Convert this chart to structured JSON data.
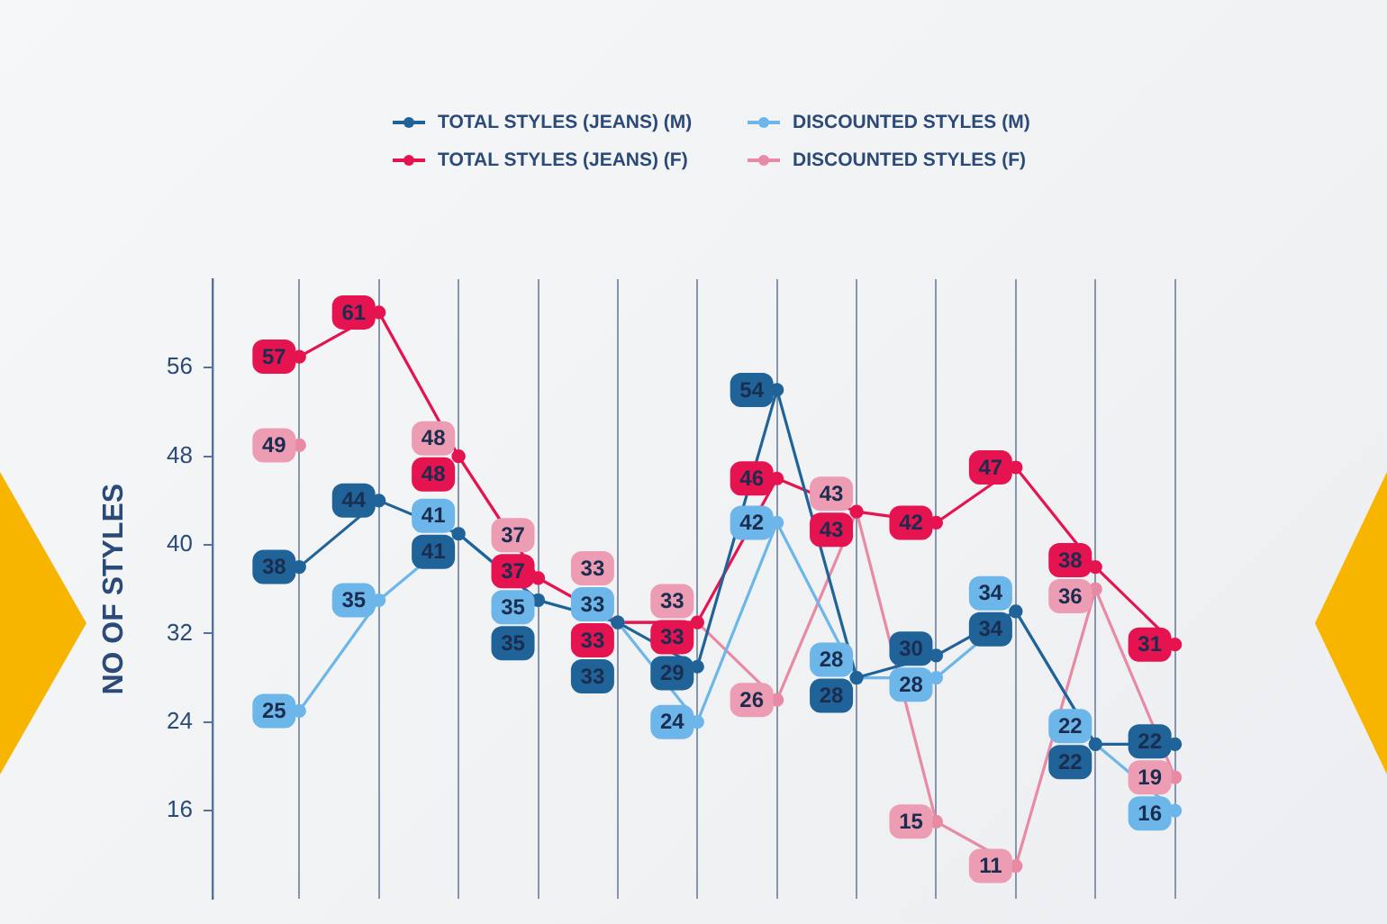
{
  "chart_data": {
    "type": "line",
    "ylabel": "NO OF STYLES",
    "categories": [
      null,
      null,
      null,
      null,
      null,
      null,
      null,
      null,
      null,
      null,
      null,
      null
    ],
    "series": [
      {
        "name": "TOTAL STYLES (JEANS) (M)",
        "color": "#1f6399",
        "values": [
          38,
          44,
          41,
          35,
          33,
          29,
          54,
          28,
          30,
          34,
          22,
          22
        ]
      },
      {
        "name": "DISCOUNTED STYLES (M)",
        "color": "#6cb6ea",
        "values": [
          25,
          35,
          41,
          35,
          33,
          24,
          42,
          28,
          28,
          34,
          22,
          16
        ]
      },
      {
        "name": "TOTAL STYLES (JEANS) (F)",
        "color": "#e5134f",
        "values": [
          57,
          61,
          48,
          37,
          33,
          33,
          46,
          43,
          42,
          47,
          38,
          31
        ]
      },
      {
        "name": "DISCOUNTED STYLES (F)",
        "color": "#e98aa5",
        "values": [
          49,
          null,
          48,
          37,
          33,
          33,
          26,
          43,
          15,
          11,
          36,
          19
        ]
      }
    ],
    "ylim": [
      8,
      64
    ],
    "yticks": [
      16,
      24,
      32,
      40,
      48,
      56
    ],
    "grid": "x",
    "legend": "top",
    "marker": "circle",
    "line_style": "solid",
    "data_labels": true
  }
}
